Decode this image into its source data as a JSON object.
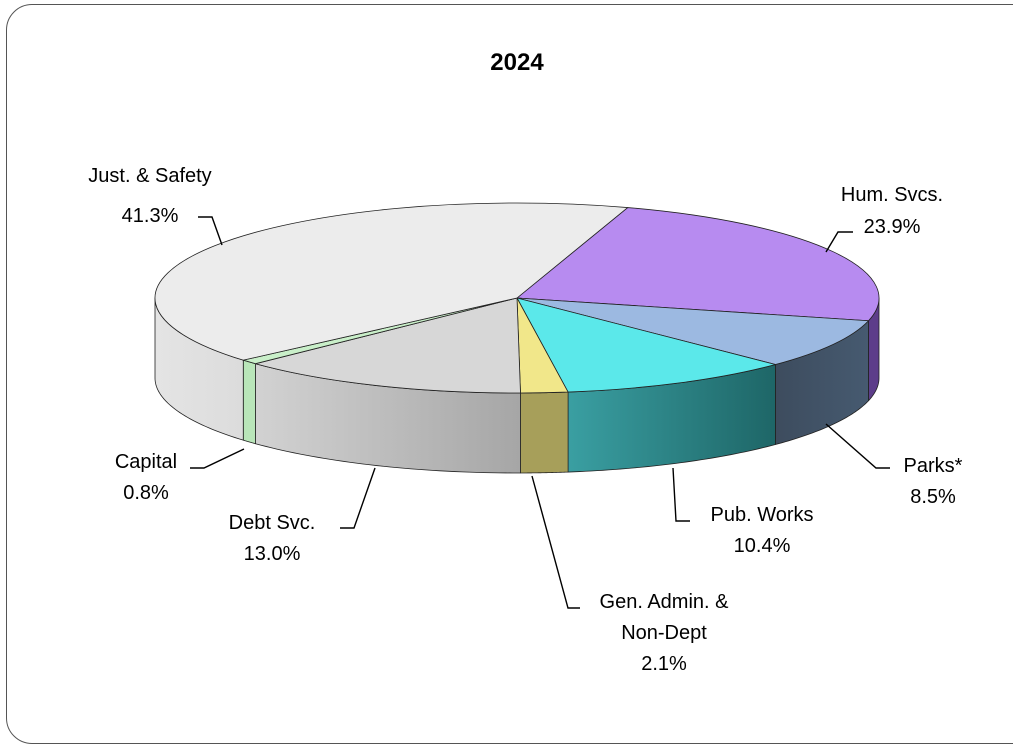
{
  "chart_data": {
    "type": "pie",
    "title": "2024",
    "slices": [
      {
        "label": "Hum. Svcs.",
        "percent_text": "23.9%",
        "value": 23.9,
        "color": "#b78bf0",
        "side_color": "#5d3d8a"
      },
      {
        "label": "Parks*",
        "percent_text": "8.5%",
        "value": 8.5,
        "color": "#9cb9e1",
        "side_color": "#3f4e60"
      },
      {
        "label": "Pub. Works",
        "percent_text": "10.4%",
        "value": 10.4,
        "color": "#5be8ea",
        "side_color": "#2b8a8d"
      },
      {
        "label": "Gen. Admin. & Non-Dept",
        "percent_text": "2.1%",
        "value": 2.1,
        "color": "#f1e78a",
        "side_color": "#a79f5a"
      },
      {
        "label": "Debt Svc.",
        "percent_text": "13.0%",
        "value": 13.0,
        "color": "#d7d7d7",
        "side_color": "#b4b4b4"
      },
      {
        "label": "Capital",
        "percent_text": "0.8%",
        "value": 0.8,
        "color": "#c9efc9",
        "side_color": "#a9dca9"
      },
      {
        "label": "Just. & Safety",
        "percent_text": "41.3%",
        "value": 41.3,
        "color": "#ececec",
        "side_color": "#dadada"
      }
    ],
    "legend": "none (leader-line labels)"
  }
}
